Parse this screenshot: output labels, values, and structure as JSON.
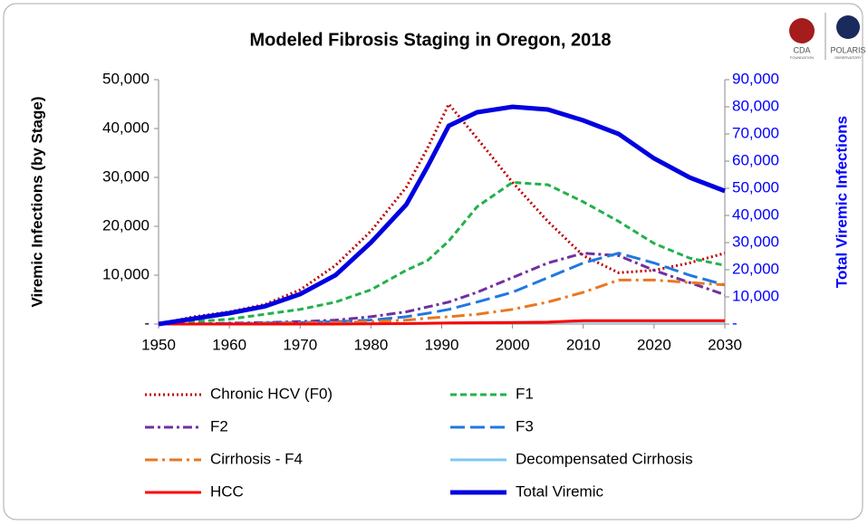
{
  "chart_data": {
    "type": "line",
    "title": "Modeled Fibrosis Staging in Oregon, 2018",
    "y_label": "Viremic Infections (by Stage)",
    "y2_label": "Total Viremic Infections",
    "logos": [
      "CDA",
      "FOUNDATION",
      "POLARIS",
      "OBSERVATORY"
    ],
    "x": [
      1950,
      1955,
      1960,
      1965,
      1970,
      1975,
      1980,
      1985,
      1988,
      1991,
      1995,
      2000,
      2005,
      2010,
      2015,
      2020,
      2025,
      2030
    ],
    "xlim": [
      1950,
      2030
    ],
    "xticks": [
      1950,
      1960,
      1970,
      1980,
      1990,
      2000,
      2010,
      2020,
      2030
    ],
    "ylim": [
      0,
      50000
    ],
    "yticks": [
      {
        "value": 0,
        "label": "-"
      },
      {
        "value": 10000,
        "label": "10,000"
      },
      {
        "value": 20000,
        "label": "20,000"
      },
      {
        "value": 30000,
        "label": "30,000"
      },
      {
        "value": 40000,
        "label": "40,000"
      },
      {
        "value": 50000,
        "label": "50,000"
      }
    ],
    "y2lim": [
      0,
      90000
    ],
    "y2ticks": [
      {
        "value": 0,
        "label": "-"
      },
      {
        "value": 10000,
        "label": "10,000"
      },
      {
        "value": 20000,
        "label": "20,000"
      },
      {
        "value": 30000,
        "label": "30,000"
      },
      {
        "value": 40000,
        "label": "40,000"
      },
      {
        "value": 50000,
        "label": "50,000"
      },
      {
        "value": 60000,
        "label": "60,000"
      },
      {
        "value": 70000,
        "label": "70,000"
      },
      {
        "value": 80000,
        "label": "80,000"
      },
      {
        "value": 90000,
        "label": "90,000"
      }
    ],
    "y2color": "#0000ff",
    "series": [
      {
        "name": "Chronic HCV (F0)",
        "color": "#c00000",
        "dash": "dotted",
        "width": 3,
        "values": [
          0,
          1500,
          2500,
          4000,
          7000,
          12000,
          19000,
          28000,
          36000,
          45000,
          38000,
          29000,
          21000,
          14000,
          10500,
          11000,
          12500,
          14500
        ]
      },
      {
        "name": "F1",
        "color": "#22b14c",
        "dash": "dashed",
        "width": 3,
        "values": [
          0,
          500,
          1000,
          2000,
          3000,
          4500,
          7000,
          11000,
          13000,
          17000,
          24000,
          29000,
          28500,
          25000,
          21000,
          16500,
          13500,
          12000
        ]
      },
      {
        "name": "F2",
        "color": "#7030a0",
        "dash": "dashdot",
        "width": 3,
        "values": [
          0,
          0,
          200,
          300,
          500,
          800,
          1500,
          2500,
          3500,
          4500,
          6500,
          9500,
          12500,
          14500,
          14000,
          11000,
          8500,
          6000
        ]
      },
      {
        "name": "F3",
        "color": "#1f78e0",
        "dash": "longdash",
        "width": 3,
        "values": [
          0,
          0,
          100,
          200,
          300,
          500,
          800,
          1500,
          2200,
          3000,
          4500,
          6500,
          9500,
          12500,
          14500,
          12500,
          10000,
          8000
        ]
      },
      {
        "name": "Cirrhosis - F4",
        "color": "#e87722",
        "dash": "longdashdot",
        "width": 3,
        "values": [
          0,
          0,
          0,
          100,
          200,
          300,
          500,
          800,
          1200,
          1500,
          2000,
          3000,
          4500,
          6500,
          9000,
          9000,
          8500,
          8000
        ]
      },
      {
        "name": "Decompensated Cirrhosis",
        "color": "#7ec8f0",
        "dash": "solid",
        "width": 3,
        "values": [
          0,
          0,
          0,
          0,
          0,
          50,
          100,
          150,
          200,
          250,
          300,
          350,
          400,
          500,
          500,
          500,
          500,
          500
        ]
      },
      {
        "name": "HCC",
        "color": "#ff0000",
        "dash": "solid",
        "width": 3,
        "values": [
          0,
          0,
          0,
          0,
          0,
          0,
          50,
          100,
          150,
          200,
          250,
          300,
          400,
          700,
          700,
          700,
          700,
          700
        ]
      },
      {
        "name": "Total Viremic",
        "color": "#0000e0",
        "dash": "solid",
        "width": 5,
        "axis": "y2",
        "values": [
          0,
          2000,
          4000,
          6500,
          11000,
          18000,
          30000,
          44000,
          58000,
          73000,
          78000,
          80000,
          79000,
          75000,
          70000,
          61000,
          54000,
          49000
        ]
      }
    ]
  }
}
